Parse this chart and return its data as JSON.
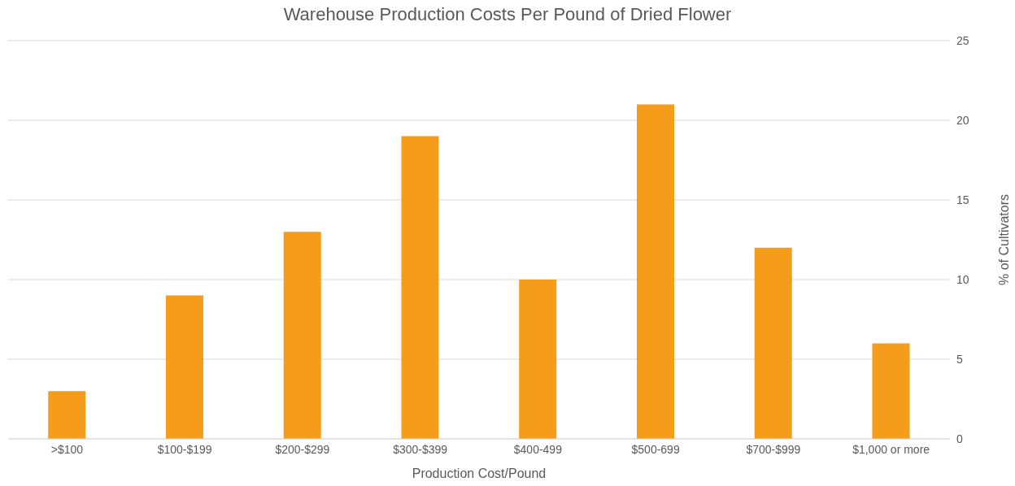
{
  "chart_data": {
    "type": "bar",
    "title": "Warehouse Production Costs Per Pound of Dried Flower",
    "xlabel": "Production Cost/Pound",
    "ylabel": "% of Cultivators",
    "categories": [
      ">$100",
      "$100-$199",
      "$200-$299",
      "$300-$399",
      "$400-499",
      "$500-699",
      "$700-$999",
      "$1,000 or more"
    ],
    "values": [
      3,
      9,
      13,
      19,
      10,
      21,
      12,
      6
    ],
    "color": "#f59c1a",
    "ylim": [
      0,
      25
    ],
    "yticks": [
      0,
      5,
      10,
      15,
      20,
      25
    ],
    "grid": "y"
  }
}
